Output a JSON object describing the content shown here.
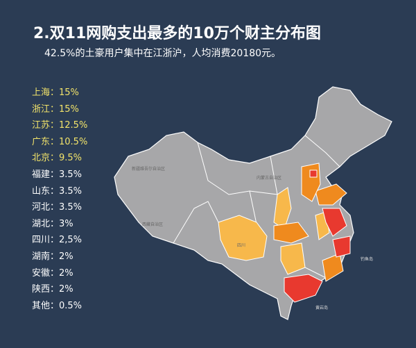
{
  "header": {
    "title": "2.双11网购支出最多的10万个财主分布图",
    "subtitle": "42.5%的土豪用户集中在江浙沪，人均消费20180元。"
  },
  "list": {
    "highlighted": [
      "上海：15%",
      "浙江：15%",
      "江苏：12.5%",
      "广东：10.5%",
      "北京：9.5%"
    ],
    "others": [
      "福建：3.5%",
      "山东：3.5%",
      "河北：3.5%",
      "湖北：3%",
      "四川：2,5%",
      "湖南：2%",
      "安徽：2%",
      "陕西：2%",
      "其他：0.5%"
    ]
  },
  "map": {
    "labels": [
      "新疆维吾尔自治区",
      "西藏自治区",
      "内蒙古自治区",
      "四川",
      "钓鱼岛",
      "黄岩岛"
    ]
  }
}
